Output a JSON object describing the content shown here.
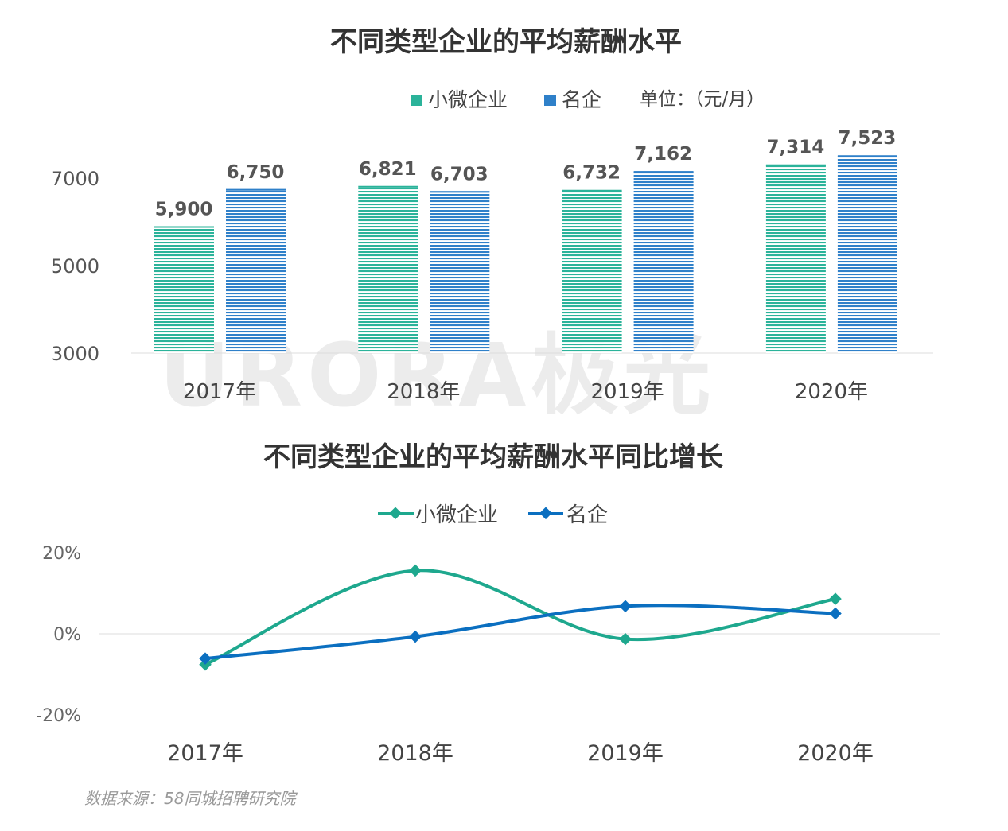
{
  "chart_data": [
    {
      "type": "bar",
      "title": "不同类型企业的平均薪酬水平",
      "unit_note": "单位：（元/月）",
      "categories": [
        "2017年",
        "2018年",
        "2019年",
        "2020年"
      ],
      "series": [
        {
          "name": "小微企业",
          "values": [
            5900,
            6821,
            6732,
            7314
          ],
          "labels": [
            "5,900",
            "6,821",
            "6,732",
            "7,314"
          ],
          "color": "#2bb39a"
        },
        {
          "name": "名企",
          "values": [
            6750,
            6703,
            7162,
            7523
          ],
          "labels": [
            "6,750",
            "6,703",
            "7,162",
            "7,523"
          ],
          "color": "#2f80c9"
        }
      ],
      "yticks": [
        "3000",
        "5000",
        "7000"
      ],
      "ylim": [
        3000,
        7700
      ],
      "legend": "top",
      "grid": false
    },
    {
      "type": "line",
      "title": "不同类型企业的平均薪酬水平同比增长",
      "categories": [
        "2017年",
        "2018年",
        "2019年",
        "2020年"
      ],
      "series": [
        {
          "name": "小微企业",
          "values": [
            -7.6,
            15.6,
            -1.3,
            8.6
          ],
          "color": "#1ea88e"
        },
        {
          "name": "名企",
          "values": [
            -6.1,
            -0.7,
            6.8,
            5.0
          ],
          "color": "#0b6fc0"
        }
      ],
      "yticks": [
        "20%",
        "0%",
        "-20%"
      ],
      "ylim": [
        -20,
        20
      ],
      "smooth": true,
      "legend": "top",
      "grid": false
    }
  ],
  "source": "数据来源：58同城招聘研究院",
  "watermark": "URORA极光"
}
